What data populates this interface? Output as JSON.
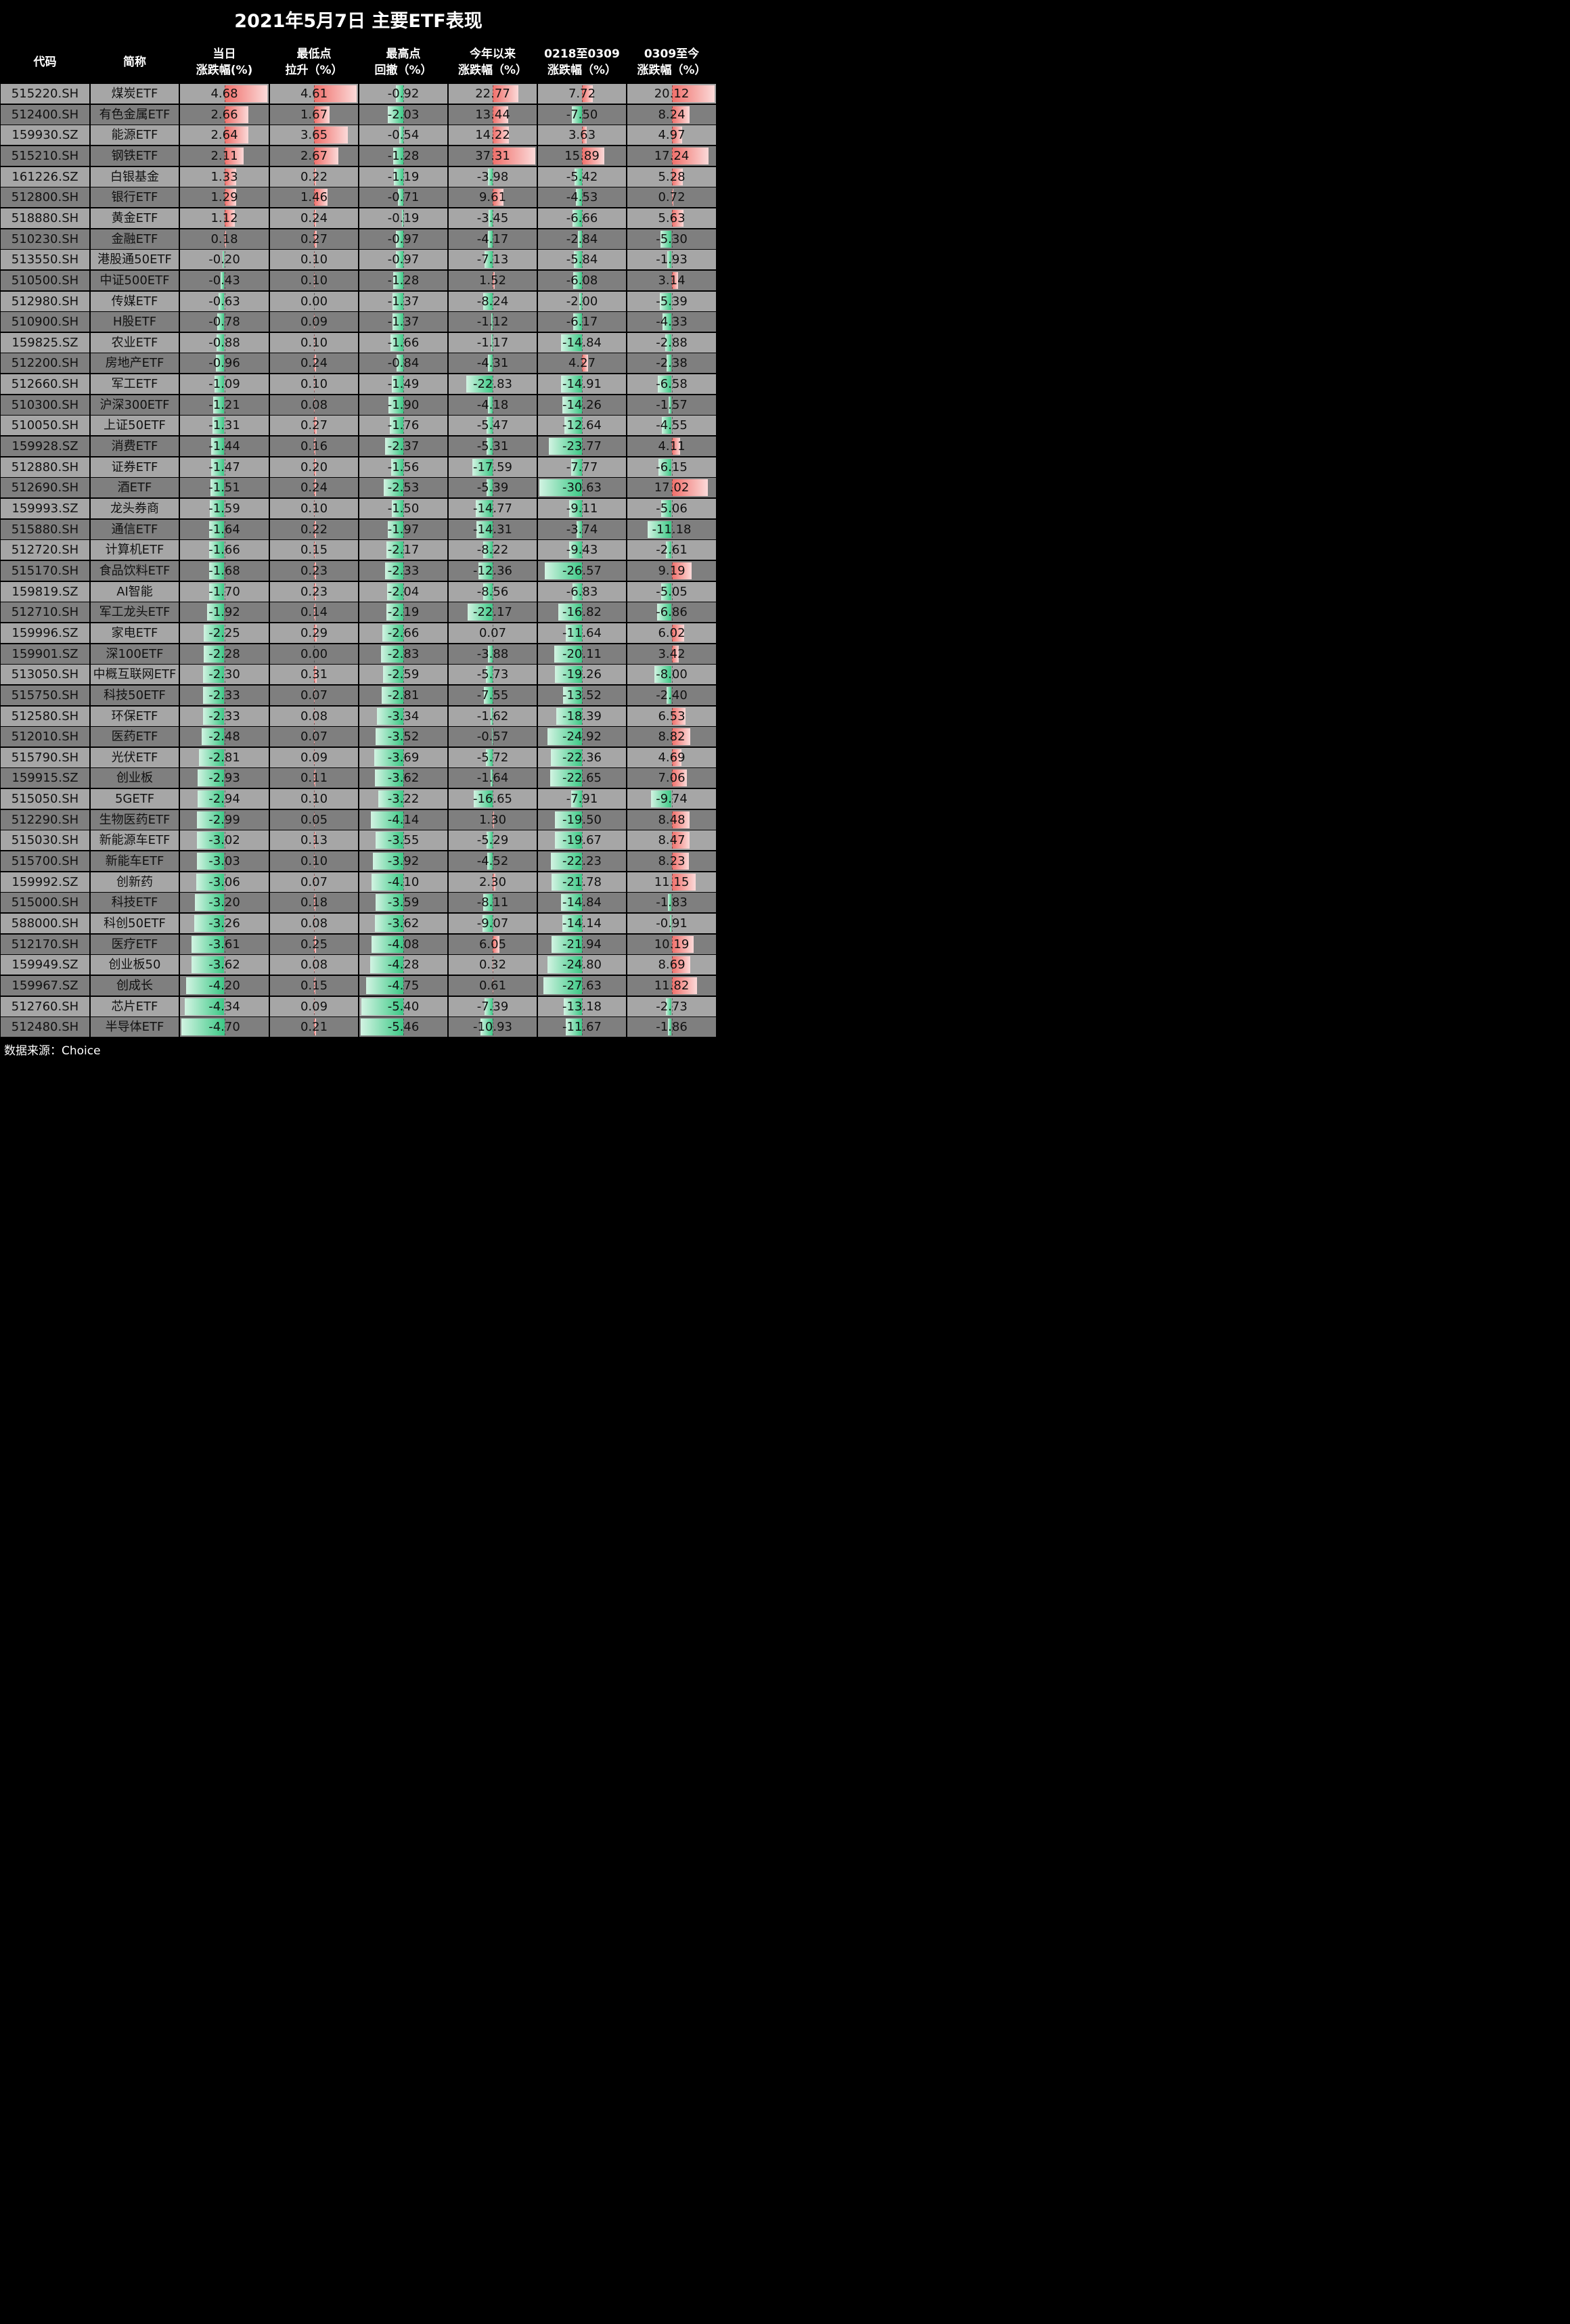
{
  "title": "2021年5月7日 主要ETF表现",
  "source": "数据来源：Choice",
  "colors": {
    "positive": "#f06f6a",
    "negative": "#3cc986",
    "row_light": "#a6a6a6",
    "row_dark": "#7f7f7f",
    "header_bg": "#000000"
  },
  "chart_data": {
    "type": "table",
    "title": "2021年5月7日 主要ETF表现",
    "columns": [
      {
        "key": "code",
        "line1": "代码",
        "line2": ""
      },
      {
        "key": "name",
        "line1": "简称",
        "line2": ""
      },
      {
        "key": "day",
        "line1": "当日",
        "line2": "涨跌幅(%)"
      },
      {
        "key": "low",
        "line1": "最低点",
        "line2": "拉升（%）"
      },
      {
        "key": "high",
        "line1": "最高点",
        "line2": "回撤（%）"
      },
      {
        "key": "ytd",
        "line1": "今年以来",
        "line2": "涨跌幅（%）"
      },
      {
        "key": "p1",
        "line1": "0218至0309",
        "line2": "涨跌幅（%）"
      },
      {
        "key": "p2",
        "line1": "0309至今",
        "line2": "涨跌幅（%）"
      }
    ],
    "rows": [
      [
        "515220.SH",
        "煤炭ETF",
        "4.68",
        "4.61",
        "-0.92",
        "22.77",
        "7.72",
        "20.12"
      ],
      [
        "512400.SH",
        "有色金属ETF",
        "2.66",
        "1.67",
        "-2.03",
        "13.44",
        "-7.50",
        "8.24"
      ],
      [
        "159930.SZ",
        "能源ETF",
        "2.64",
        "3.65",
        "-0.54",
        "14.22",
        "3.63",
        "4.97"
      ],
      [
        "515210.SH",
        "钢铁ETF",
        "2.11",
        "2.67",
        "-1.28",
        "37.31",
        "15.89",
        "17.24"
      ],
      [
        "161226.SZ",
        "白银基金",
        "1.33",
        "0.22",
        "-1.19",
        "-3.98",
        "-5.42",
        "5.28"
      ],
      [
        "512800.SH",
        "银行ETF",
        "1.29",
        "1.46",
        "-0.71",
        "9.61",
        "-4.53",
        "0.72"
      ],
      [
        "518880.SH",
        "黄金ETF",
        "1.12",
        "0.24",
        "-0.19",
        "-3.45",
        "-6.66",
        "5.63"
      ],
      [
        "510230.SH",
        "金融ETF",
        "0.18",
        "0.27",
        "-0.97",
        "-4.17",
        "-2.84",
        "-5.30"
      ],
      [
        "513550.SH",
        "港股通50ETF",
        "-0.20",
        "0.10",
        "-0.97",
        "-7.13",
        "-5.84",
        "-1.93"
      ],
      [
        "510500.SH",
        "中证500ETF",
        "-0.43",
        "0.10",
        "-1.28",
        "1.52",
        "-6.08",
        "3.14"
      ],
      [
        "512980.SH",
        "传媒ETF",
        "-0.63",
        "0.00",
        "-1.37",
        "-8.24",
        "-2.00",
        "-5.39"
      ],
      [
        "510900.SH",
        "H股ETF",
        "-0.78",
        "0.09",
        "-1.37",
        "-1.12",
        "-6.17",
        "-4.33"
      ],
      [
        "159825.SZ",
        "农业ETF",
        "-0.88",
        "0.10",
        "-1.66",
        "-1.17",
        "-14.84",
        "-2.88"
      ],
      [
        "512200.SH",
        "房地产ETF",
        "-0.96",
        "0.24",
        "-0.84",
        "-4.31",
        "4.27",
        "-2.38"
      ],
      [
        "512660.SH",
        "军工ETF",
        "-1.09",
        "0.10",
        "-1.49",
        "-22.83",
        "-14.91",
        "-6.58"
      ],
      [
        "510300.SH",
        "沪深300ETF",
        "-1.21",
        "0.08",
        "-1.90",
        "-4.18",
        "-14.26",
        "-1.57"
      ],
      [
        "510050.SH",
        "上证50ETF",
        "-1.31",
        "0.27",
        "-1.76",
        "-5.47",
        "-12.64",
        "-4.55"
      ],
      [
        "159928.SZ",
        "消费ETF",
        "-1.44",
        "0.16",
        "-2.37",
        "-5.31",
        "-23.77",
        "4.11"
      ],
      [
        "512880.SH",
        "证券ETF",
        "-1.47",
        "0.20",
        "-1.56",
        "-17.59",
        "-7.77",
        "-6.15"
      ],
      [
        "512690.SH",
        "酒ETF",
        "-1.51",
        "0.24",
        "-2.53",
        "-5.39",
        "-30.63",
        "17.02"
      ],
      [
        "159993.SZ",
        "龙头券商",
        "-1.59",
        "0.10",
        "-1.50",
        "-14.77",
        "-9.11",
        "-5.06"
      ],
      [
        "515880.SH",
        "通信ETF",
        "-1.64",
        "0.22",
        "-1.97",
        "-14.31",
        "-3.74",
        "-11.18"
      ],
      [
        "512720.SH",
        "计算机ETF",
        "-1.66",
        "0.15",
        "-2.17",
        "-8.22",
        "-9.43",
        "-2.61"
      ],
      [
        "515170.SH",
        "食品饮料ETF",
        "-1.68",
        "0.23",
        "-2.33",
        "-12.36",
        "-26.57",
        "9.19"
      ],
      [
        "159819.SZ",
        "AI智能",
        "-1.70",
        "0.23",
        "-2.04",
        "-8.56",
        "-6.83",
        "-5.05"
      ],
      [
        "512710.SH",
        "军工龙头ETF",
        "-1.92",
        "0.14",
        "-2.19",
        "-22.17",
        "-16.82",
        "-6.86"
      ],
      [
        "159996.SZ",
        "家电ETF",
        "-2.25",
        "0.29",
        "-2.66",
        "0.07",
        "-11.64",
        "6.02"
      ],
      [
        "159901.SZ",
        "深100ETF",
        "-2.28",
        "0.00",
        "-2.83",
        "-3.88",
        "-20.11",
        "3.42"
      ],
      [
        "513050.SH",
        "中概互联网ETF",
        "-2.30",
        "0.31",
        "-2.59",
        "-5.73",
        "-19.26",
        "-8.00"
      ],
      [
        "515750.SH",
        "科技50ETF",
        "-2.33",
        "0.07",
        "-2.81",
        "-7.55",
        "-13.52",
        "-2.40"
      ],
      [
        "512580.SH",
        "环保ETF",
        "-2.33",
        "0.08",
        "-3.34",
        "-1.62",
        "-18.39",
        "6.53"
      ],
      [
        "512010.SH",
        "医药ETF",
        "-2.48",
        "0.07",
        "-3.52",
        "-0.57",
        "-24.92",
        "8.82"
      ],
      [
        "515790.SH",
        "光伏ETF",
        "-2.81",
        "0.09",
        "-3.69",
        "-5.72",
        "-22.36",
        "4.69"
      ],
      [
        "159915.SZ",
        "创业板",
        "-2.93",
        "0.11",
        "-3.62",
        "-1.64",
        "-22.65",
        "7.06"
      ],
      [
        "515050.SH",
        "5GETF",
        "-2.94",
        "0.10",
        "-3.22",
        "-16.65",
        "-7.91",
        "-9.74"
      ],
      [
        "512290.SH",
        "生物医药ETF",
        "-2.99",
        "0.05",
        "-4.14",
        "1.30",
        "-19.50",
        "8.48"
      ],
      [
        "515030.SH",
        "新能源车ETF",
        "-3.02",
        "0.13",
        "-3.55",
        "-5.29",
        "-19.67",
        "8.47"
      ],
      [
        "515700.SH",
        "新能车ETF",
        "-3.03",
        "0.10",
        "-3.92",
        "-4.52",
        "-22.23",
        "8.23"
      ],
      [
        "159992.SZ",
        "创新药",
        "-3.06",
        "0.07",
        "-4.10",
        "2.30",
        "-21.78",
        "11.15"
      ],
      [
        "515000.SH",
        "科技ETF",
        "-3.20",
        "0.18",
        "-3.59",
        "-8.11",
        "-14.84",
        "-1.83"
      ],
      [
        "588000.SH",
        "科创50ETF",
        "-3.26",
        "0.08",
        "-3.62",
        "-9.07",
        "-14.14",
        "-0.91"
      ],
      [
        "512170.SH",
        "医疗ETF",
        "-3.61",
        "0.25",
        "-4.08",
        "6.05",
        "-21.94",
        "10.19"
      ],
      [
        "159949.SZ",
        "创业板50",
        "-3.62",
        "0.08",
        "-4.28",
        "0.32",
        "-24.80",
        "8.69"
      ],
      [
        "159967.SZ",
        "创成长",
        "-4.20",
        "0.15",
        "-4.75",
        "0.61",
        "-27.63",
        "11.82"
      ],
      [
        "512760.SH",
        "芯片ETF",
        "-4.34",
        "0.09",
        "-5.40",
        "-7.39",
        "-13.18",
        "-2.73"
      ],
      [
        "512480.SH",
        "半导体ETF",
        "-4.70",
        "0.21",
        "-5.46",
        "-10.93",
        "-11.67",
        "-1.86"
      ]
    ]
  }
}
